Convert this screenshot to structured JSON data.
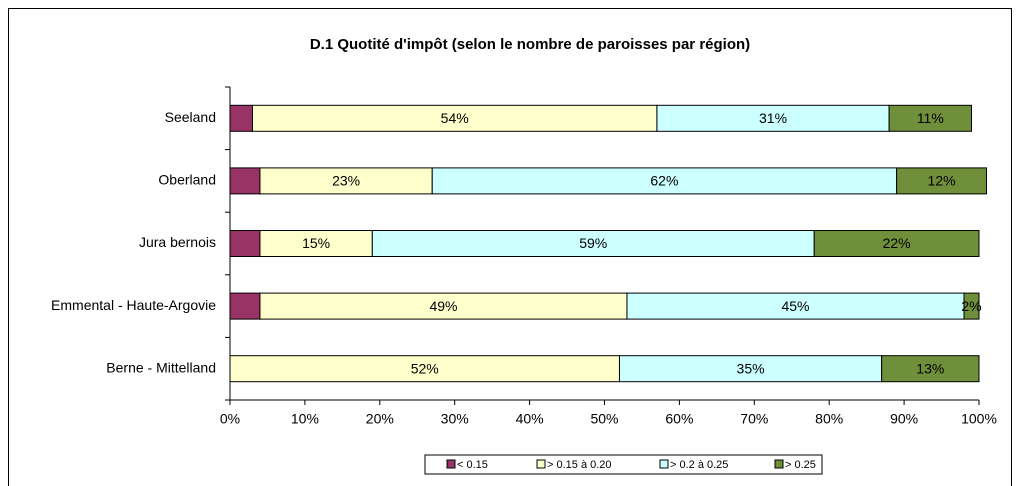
{
  "chart_data": {
    "type": "stacked_bar_horizontal",
    "title": "D.1 Quotité d'impôt (selon le nombre de paroisses par région)",
    "categories": [
      "Seeland",
      "Oberland",
      "Jura bernois",
      "Emmental - Haute-Argovie",
      "Berne - Mittelland"
    ],
    "series": [
      {
        "name": "< 0.15",
        "color": "#993366",
        "values": [
          3,
          4,
          4,
          4,
          0
        ]
      },
      {
        "name": "> 0.15 à 0.20",
        "color": "#ffffcc",
        "values": [
          54,
          23,
          15,
          49,
          52
        ],
        "value_labels": [
          "54%",
          "23%",
          "15%",
          "49%",
          "52%"
        ]
      },
      {
        "name": "> 0.2 à 0.25",
        "color": "#ccffff",
        "values": [
          31,
          62,
          59,
          45,
          35
        ],
        "value_labels": [
          "31%",
          "62%",
          "59%",
          "45%",
          "35%"
        ]
      },
      {
        "name": "> 0.25",
        "color": "#6f8f3a",
        "values": [
          11,
          12,
          22,
          2,
          13
        ],
        "value_labels": [
          "11%",
          "12%",
          "22%",
          "2%",
          "13%"
        ]
      }
    ],
    "xlim": [
      0,
      100
    ],
    "xticks": [
      {
        "value": 0,
        "label": "0%"
      },
      {
        "value": 10,
        "label": "10%"
      },
      {
        "value": 20,
        "label": "20%"
      },
      {
        "value": 30,
        "label": "30%"
      },
      {
        "value": 40,
        "label": "40%"
      },
      {
        "value": 50,
        "label": "50%"
      },
      {
        "value": 60,
        "label": "60%"
      },
      {
        "value": 70,
        "label": "70%"
      },
      {
        "value": 80,
        "label": "80%"
      },
      {
        "value": 90,
        "label": "90%"
      },
      {
        "value": 100,
        "label": "100%"
      }
    ],
    "legend": "bottom"
  }
}
